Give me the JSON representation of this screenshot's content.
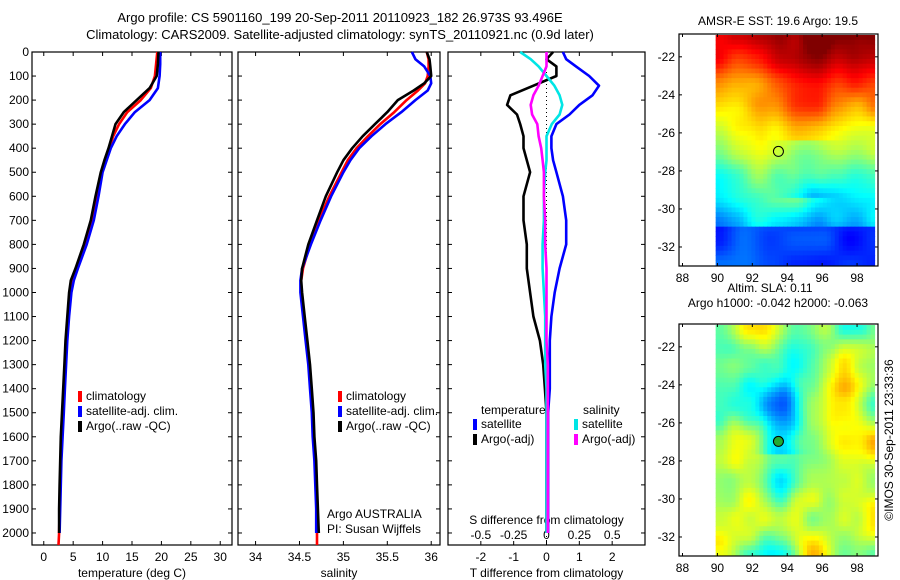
{
  "title": {
    "line1": "Argo profile: CS 5901160_199 20-Sep-2011 20110923_182 26.973S 93.496E",
    "line2": "Climatology: CARS2009. Satellite-adjusted climatology: synTS_20110921.nc (0.9d later)"
  },
  "colors": {
    "climatology": "#ff0000",
    "satellite": "#0000ff",
    "argo": "#000000",
    "sal_satellite": "#00e5e5",
    "sal_argo": "#ff00ff"
  },
  "chart_data": [
    {
      "id": "temperature",
      "type": "line",
      "xlabel": "temperature (deg C)",
      "ylabel": "",
      "xlim": [
        -2,
        32
      ],
      "ylim": [
        2050,
        0
      ],
      "xticks": [
        0,
        5,
        10,
        15,
        20,
        25,
        30
      ],
      "yticks": [
        0,
        100,
        200,
        300,
        400,
        500,
        600,
        700,
        800,
        900,
        1000,
        1100,
        1200,
        1300,
        1400,
        1500,
        1600,
        1700,
        1800,
        1900,
        2000
      ],
      "legend": [
        "climatology",
        "satellite-adj. clim.",
        "Argo(..raw -QC)"
      ],
      "legend_position": "middle-center",
      "depth": [
        0,
        50,
        100,
        150,
        200,
        250,
        300,
        350,
        400,
        450,
        500,
        600,
        700,
        800,
        900,
        950,
        1000,
        1100,
        1200,
        1300,
        1400,
        1500,
        1600,
        1700,
        1800,
        1900,
        2000,
        2050
      ],
      "series": [
        {
          "name": "climatology",
          "color_key": "climatology",
          "values": [
            19.3,
            19.1,
            18.9,
            18.2,
            16.5,
            14.2,
            12.8,
            11.8,
            11.1,
            10.4,
            9.8,
            9.0,
            8.2,
            7.0,
            5.6,
            4.9,
            4.5,
            4.1,
            3.8,
            3.6,
            3.4,
            3.2,
            3.0,
            2.9,
            2.8,
            2.7,
            2.6,
            2.5
          ]
        },
        {
          "name": "satellite-adj. clim.",
          "color_key": "satellite",
          "values": [
            19.8,
            19.8,
            19.7,
            19.4,
            18.0,
            15.5,
            13.8,
            12.4,
            11.4,
            10.7,
            10.0,
            9.3,
            8.5,
            7.3,
            5.8,
            5.1,
            4.7,
            4.3,
            4.0,
            3.8,
            3.6,
            3.4,
            3.2,
            3.0,
            2.9,
            2.8,
            2.7,
            null
          ]
        },
        {
          "name": "Argo(..raw -QC)",
          "color_key": "argo",
          "values": [
            19.5,
            19.4,
            19.2,
            18.0,
            15.8,
            13.6,
            12.2,
            11.6,
            11.0,
            10.3,
            9.7,
            8.8,
            8.0,
            6.8,
            5.4,
            4.6,
            4.3,
            4.0,
            3.7,
            3.5,
            3.3,
            3.1,
            2.9,
            2.8,
            2.7,
            2.6,
            2.6,
            null
          ]
        }
      ]
    },
    {
      "id": "salinity",
      "type": "line",
      "xlabel": "salinity",
      "ylabel": "",
      "xlim": [
        33.8,
        36.1
      ],
      "ylim": [
        2050,
        0
      ],
      "xticks": [
        34,
        34.5,
        35,
        35.5,
        36
      ],
      "legend": [
        "climatology",
        "satellite-adj. clim.",
        "Argo(..raw -QC)"
      ],
      "legend_position": "middle-right",
      "annotation": {
        "line1": "Argo AUSTRALIA",
        "line2": "PI: Susan Wijffels"
      },
      "depth": [
        0,
        30,
        60,
        100,
        130,
        160,
        200,
        250,
        300,
        350,
        400,
        450,
        500,
        600,
        700,
        800,
        900,
        950,
        1000,
        1100,
        1200,
        1300,
        1400,
        1500,
        1600,
        1700,
        1800,
        1900,
        2000,
        2050
      ],
      "series": [
        {
          "name": "climatology",
          "color_key": "climatology",
          "values": [
            35.95,
            35.97,
            35.97,
            35.96,
            35.93,
            35.85,
            35.72,
            35.58,
            35.42,
            35.28,
            35.15,
            35.05,
            34.98,
            34.84,
            34.72,
            34.62,
            34.54,
            34.52,
            34.52,
            34.55,
            34.58,
            34.61,
            34.63,
            34.65,
            34.66,
            34.68,
            34.69,
            34.7,
            34.7,
            34.7
          ]
        },
        {
          "name": "satellite-adj. clim.",
          "color_key": "satellite",
          "values": [
            35.78,
            35.82,
            35.92,
            35.99,
            36.0,
            35.96,
            35.82,
            35.66,
            35.48,
            35.32,
            35.18,
            35.08,
            35.0,
            34.86,
            34.74,
            34.63,
            34.53,
            34.51,
            34.51,
            34.54,
            34.57,
            34.6,
            34.62,
            34.64,
            34.65,
            34.67,
            34.68,
            34.69,
            34.69,
            null
          ]
        },
        {
          "name": "Argo(..raw -QC)",
          "color_key": "argo",
          "values": [
            35.95,
            35.98,
            35.99,
            36.0,
            35.92,
            35.8,
            35.62,
            35.5,
            35.36,
            35.22,
            35.1,
            35.0,
            34.93,
            34.8,
            34.7,
            34.6,
            34.53,
            34.52,
            34.53,
            34.56,
            34.59,
            34.62,
            34.64,
            34.66,
            34.67,
            34.69,
            34.7,
            34.71,
            34.72,
            null
          ]
        }
      ]
    },
    {
      "id": "difference",
      "type": "line",
      "xlabel": "T difference from climatology",
      "xlabel_top": "S difference from climatology",
      "xlim": [
        -3,
        3
      ],
      "ylim": [
        2050,
        0
      ],
      "xticks": [
        -2,
        -1,
        0,
        1,
        2
      ],
      "xticks_s": [
        -0.5,
        -0.25,
        0,
        0.25,
        0.5
      ],
      "zero_line": "dotted",
      "legend": {
        "temperature_header": "temperature",
        "salinity_header": "salinity",
        "items": [
          {
            "label": "satellite",
            "color_key": "satellite",
            "group": "temperature"
          },
          {
            "label": "Argo(-adj)",
            "color_key": "argo",
            "group": "temperature"
          },
          {
            "label": "satellite",
            "color_key": "sal_satellite",
            "group": "salinity"
          },
          {
            "label": "Argo(-adj)",
            "color_key": "sal_argo",
            "group": "salinity"
          }
        ]
      },
      "legend_position": "lower-center",
      "depth": [
        0,
        30,
        60,
        100,
        140,
        180,
        220,
        260,
        300,
        350,
        400,
        450,
        500,
        600,
        700,
        800,
        900,
        1000,
        1100,
        1200,
        1300,
        1400,
        1500,
        1600,
        1700,
        1800,
        1900,
        2000
      ],
      "series": [
        {
          "name": "T satellite",
          "color_key": "satellite",
          "values": [
            0.5,
            0.6,
            0.9,
            1.3,
            1.6,
            1.4,
            1.0,
            0.7,
            0.3,
            0.15,
            0.15,
            0.2,
            0.3,
            0.5,
            0.6,
            0.6,
            0.4,
            0.25,
            0.15,
            0.1,
            0.1,
            0.1,
            0.05,
            0.05,
            0.05,
            0.05,
            0.05,
            0.05
          ]
        },
        {
          "name": "T Argo(-adj)",
          "color_key": "argo",
          "values": [
            0.2,
            0.0,
            0.3,
            0.3,
            -0.4,
            -1.1,
            -1.2,
            -0.9,
            -0.8,
            -0.7,
            -0.7,
            -0.6,
            -0.5,
            -0.7,
            -0.7,
            -0.6,
            -0.6,
            -0.5,
            -0.4,
            -0.2,
            -0.1,
            -0.05,
            0.0,
            0.0,
            0.0,
            0.0,
            0.0,
            0.0
          ]
        },
        {
          "name": "S satellite",
          "color_key": "sal_satellite",
          "values": [
            -0.2,
            -0.12,
            -0.06,
            0.0,
            0.06,
            0.1,
            0.12,
            0.1,
            0.04,
            0.0,
            0.0,
            0.0,
            -0.01,
            -0.02,
            -0.02,
            -0.03,
            -0.03,
            -0.02,
            -0.01,
            -0.01,
            -0.01,
            0.0,
            0.0,
            0.0,
            0.0,
            0.0,
            0.0,
            0.0
          ]
        },
        {
          "name": "S Argo(-adj)",
          "color_key": "sal_argo",
          "values": [
            0.0,
            0.0,
            0.0,
            -0.03,
            -0.06,
            -0.1,
            -0.12,
            -0.11,
            -0.07,
            -0.06,
            -0.04,
            -0.03,
            -0.02,
            -0.02,
            -0.01,
            -0.01,
            0.0,
            0.0,
            0.0,
            0.0,
            0.01,
            0.01,
            0.01,
            0.01,
            0.01,
            0.01,
            0.01,
            0.01
          ]
        }
      ]
    },
    {
      "id": "sst-map",
      "type": "heatmap",
      "title": "AMSR-E SST: 19.6 Argo: 19.5",
      "xlim": [
        87.8,
        99.2
      ],
      "ylim": [
        -33,
        -20.8
      ],
      "xticks": [
        88,
        90,
        92,
        94,
        96,
        98
      ],
      "yticks": [
        -22,
        -24,
        -26,
        -28,
        -30,
        -32
      ],
      "data_lon_range": [
        89.9,
        99.0
      ],
      "marker": {
        "lon": 93.496,
        "lat": -26.973,
        "style": "open-circle"
      },
      "colormap": "jet"
    },
    {
      "id": "sla-map",
      "type": "heatmap",
      "title": "Altim. SLA: 0.11",
      "subtitle": "Argo h1000: -0.042 h2000: -0.063",
      "xlim": [
        87.8,
        99.2
      ],
      "ylim": [
        -33,
        -20.8
      ],
      "xticks": [
        88,
        90,
        92,
        94,
        96,
        98
      ],
      "yticks": [
        -22,
        -24,
        -26,
        -28,
        -30,
        -32
      ],
      "data_lon_range": [
        89.9,
        99.0
      ],
      "marker": {
        "lon": 93.496,
        "lat": -26.973,
        "style": "filled-circle"
      },
      "colormap": "jet"
    }
  ],
  "credit": "©IMOS 30-Sep-2011 23:33:36"
}
